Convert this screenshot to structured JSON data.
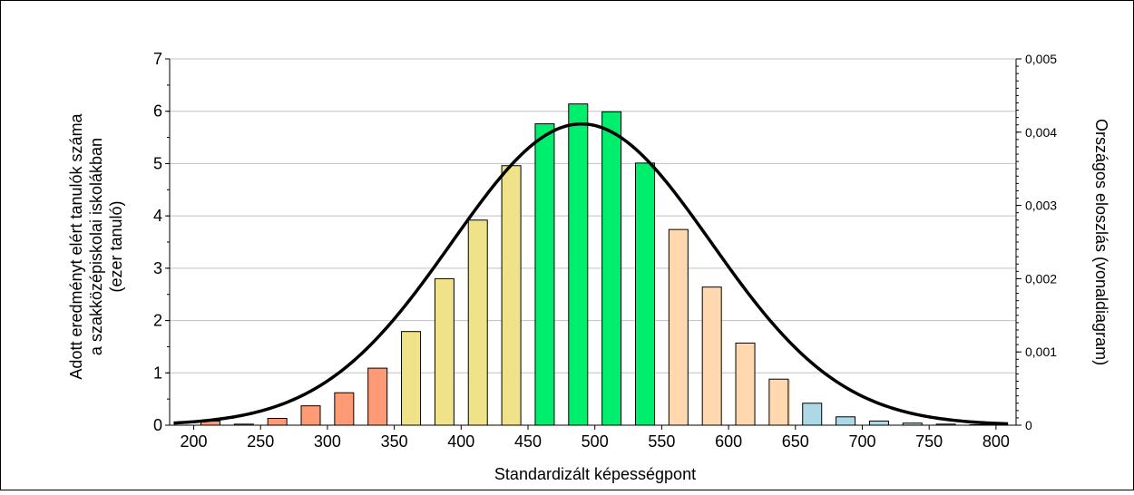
{
  "chart_data": {
    "type": "bar",
    "xlabel": "Standardizált képességpont",
    "ylabel_left_lines": [
      "Adott eredményt elért tanulók száma",
      "a szakközépiskolai iskolákban",
      "(ezer tanuló)"
    ],
    "ylabel_right": "Országos eloszlás (vonaldiagram)",
    "x_ticks": [
      200,
      250,
      300,
      350,
      400,
      450,
      500,
      550,
      600,
      650,
      700,
      750,
      800
    ],
    "xlim": [
      182,
      815
    ],
    "y_left_ticks": [
      "0",
      "1",
      "2",
      "3",
      "4",
      "5",
      "6",
      "7"
    ],
    "ylim_left": [
      0,
      7
    ],
    "y_right_ticks": [
      "0",
      "0,001",
      "0,002",
      "0,003",
      "0,004",
      "0,005"
    ],
    "ylim_right": [
      0,
      0.005
    ],
    "grid": true,
    "bars": [
      {
        "x": 212.5,
        "value": 0.08,
        "color": "#FF9A76"
      },
      {
        "x": 237.5,
        "value": 0.02,
        "color": "#FF9A76"
      },
      {
        "x": 262.5,
        "value": 0.13,
        "color": "#FF9A76"
      },
      {
        "x": 287.5,
        "value": 0.37,
        "color": "#FF9A76"
      },
      {
        "x": 312.5,
        "value": 0.62,
        "color": "#FF9A76"
      },
      {
        "x": 337.5,
        "value": 1.09,
        "color": "#FF9A76"
      },
      {
        "x": 362.5,
        "value": 1.79,
        "color": "#F0E288",
        "split_at": 355,
        "left_color": "#FF9A76"
      },
      {
        "x": 387.5,
        "value": 2.8,
        "color": "#F0E288"
      },
      {
        "x": 412.5,
        "value": 3.92,
        "color": "#F0E288"
      },
      {
        "x": 437.5,
        "value": 4.96,
        "color": "#F0E288"
      },
      {
        "x": 462.5,
        "value": 5.76,
        "color": "#00EE6E"
      },
      {
        "x": 487.5,
        "value": 6.14,
        "color": "#00EE6E"
      },
      {
        "x": 512.5,
        "value": 5.99,
        "color": "#00EE6E"
      },
      {
        "x": 537.5,
        "value": 5.01,
        "color": "#00EE6E"
      },
      {
        "x": 562.5,
        "value": 3.74,
        "color": "#FFD8B0"
      },
      {
        "x": 587.5,
        "value": 2.64,
        "color": "#FFD8B0"
      },
      {
        "x": 612.5,
        "value": 1.57,
        "color": "#FFD8B0"
      },
      {
        "x": 637.5,
        "value": 0.88,
        "color": "#FFD8B0",
        "split_at": 646,
        "right_color": "#ADD8E6"
      },
      {
        "x": 662.5,
        "value": 0.42,
        "color": "#ADD8E6"
      },
      {
        "x": 687.5,
        "value": 0.16,
        "color": "#ADD8E6"
      },
      {
        "x": 712.5,
        "value": 0.08,
        "color": "#ADD8E6"
      },
      {
        "x": 737.5,
        "value": 0.04,
        "color": "#ADD8E6"
      },
      {
        "x": 762.5,
        "value": 0.02,
        "color": "#ADD8E6"
      },
      {
        "x": 787.5,
        "value": 0.01,
        "color": "#ADD8E6"
      }
    ],
    "bar_width": 21,
    "series": [
      {
        "type": "normal-curve",
        "axis": "right",
        "mean": 490,
        "sd": 97,
        "x_range": [
          185,
          810
        ],
        "color": "#000000"
      }
    ]
  }
}
